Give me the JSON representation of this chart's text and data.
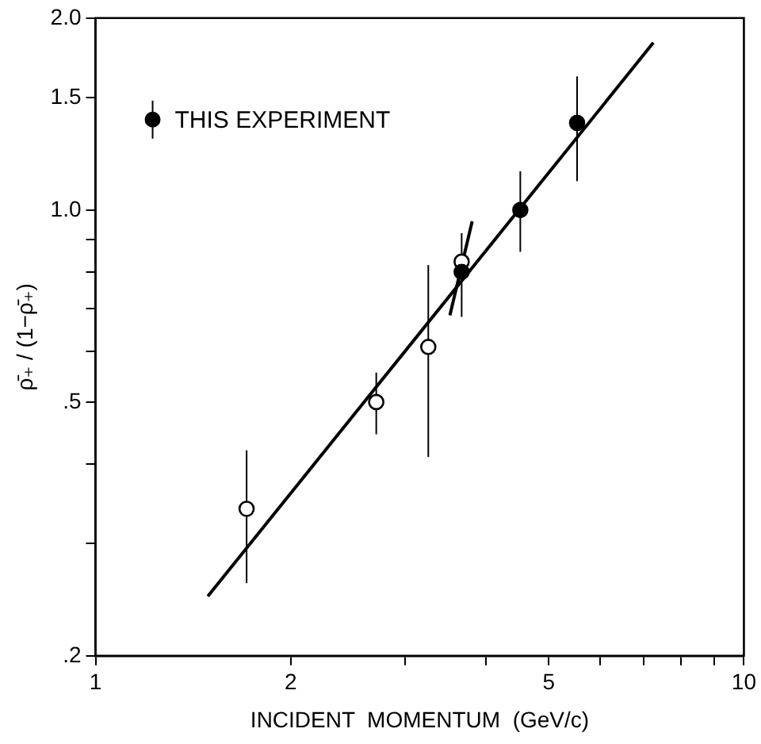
{
  "chart_data": {
    "type": "scatter",
    "xlabel": "INCIDENT  MOMENTUM  (GeV/c)",
    "ylabel": "ρ̄₊ / (1−ρ̄₊)",
    "log": "xy",
    "legend": "top left",
    "grid": false,
    "xlim": [
      1,
      10
    ],
    "xticks": [
      1,
      2,
      {
        "value": 3,
        "label": null
      },
      {
        "value": 4,
        "label": null
      },
      5,
      {
        "value": 6,
        "label": null
      },
      {
        "value": 7,
        "label": null
      },
      {
        "value": 8,
        "label": null
      },
      {
        "value": 9,
        "label": null
      },
      10
    ],
    "ylim": [
      0.2,
      2.0
    ],
    "yticks": [
      {
        "value": 0.2,
        "label": ".2"
      },
      {
        "value": 0.3,
        "label": null
      },
      {
        "value": 0.4,
        "label": null
      },
      {
        "value": 0.5,
        "label": ".5"
      },
      {
        "value": 0.6,
        "label": null
      },
      {
        "value": 0.7,
        "label": null
      },
      {
        "value": 0.8,
        "label": null
      },
      {
        "value": 0.9,
        "label": null
      },
      {
        "value": 1.0,
        "label": "1.0"
      },
      {
        "value": 1.5,
        "label": "1.5"
      },
      {
        "value": 2.0,
        "label": "2.0"
      }
    ],
    "series": [
      {
        "name": "THIS EXPERIMENT",
        "color": "#000000",
        "marker": "circle",
        "x": [
          3.67,
          4.52,
          5.53
        ],
        "values": [
          0.8,
          1.0,
          1.37
        ],
        "errors": [
          null,
          [
            0.86,
            1.15
          ],
          [
            1.11,
            1.62
          ]
        ]
      },
      {
        "color": "#ffffff",
        "marker": "circle",
        "x": [
          1.71,
          2.71,
          3.26,
          3.67
        ],
        "values": [
          0.34,
          0.5,
          0.61,
          0.83
        ],
        "errors": [
          [
            0.26,
            0.42
          ],
          [
            0.445,
            0.556
          ],
          [
            0.41,
            0.82
          ],
          [
            0.68,
            0.92
          ]
        ]
      },
      {
        "type": "line",
        "color": "#000000",
        "marker": "none",
        "x": [
          1.49,
          7.25
        ],
        "values": [
          0.248,
          1.83
        ]
      },
      {
        "type": "line",
        "color": "#000000",
        "marker": "none",
        "x": [
          3.52,
          3.81
        ],
        "values": [
          0.684,
          0.96
        ]
      }
    ]
  }
}
